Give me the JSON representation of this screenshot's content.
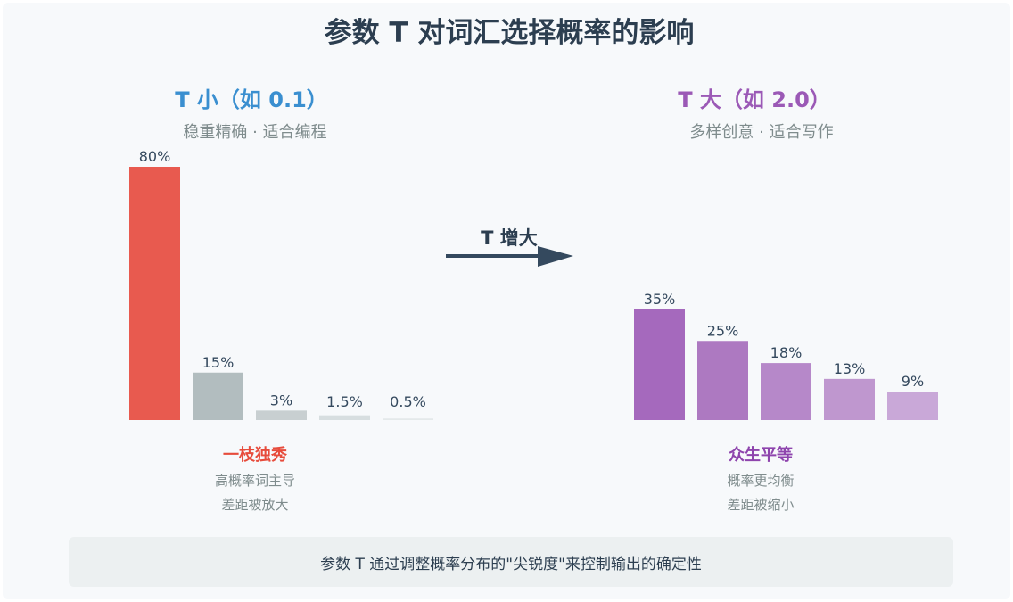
{
  "title": "参数 T 对词汇选择概率的影响",
  "arrow_label": "T 增大",
  "colors": {
    "title": "#2c3e50",
    "subtitle": "#7f8c8d",
    "left_heading": "#3a8fd0",
    "right_heading": "#9b59b6",
    "left_caption": "#e74c3c",
    "right_caption": "#8e44ad",
    "value_label": "#34495e",
    "arrow": "#34495e"
  },
  "chart_data": [
    {
      "type": "bar",
      "title": "T 小（如 0.1）",
      "subtitle": "稳重精确 · 适合编程",
      "values": [
        80,
        15,
        3,
        1.5,
        0.5
      ],
      "labels": [
        "80%",
        "15%",
        "3%",
        "1.5%",
        "0.5%"
      ],
      "bar_colors": [
        "#e85a4f",
        "#b2bdbf",
        "#c8cfd1",
        "#d7dee0",
        "#e4e9ea"
      ],
      "ylim": [
        0,
        80
      ],
      "grid": false,
      "caption_title": "一枝独秀",
      "caption_lines": [
        "高概率词主导",
        "差距被放大"
      ]
    },
    {
      "type": "bar",
      "title": "T 大（如 2.0）",
      "subtitle": "多样创意 · 适合写作",
      "values": [
        35,
        25,
        18,
        13,
        9
      ],
      "labels": [
        "35%",
        "25%",
        "18%",
        "13%",
        "9%"
      ],
      "bar_colors": [
        "#a569bd",
        "#ad79c1",
        "#b688c9",
        "#bf97cf",
        "#c9a8d8"
      ],
      "ylim": [
        0,
        80
      ],
      "grid": false,
      "caption_title": "众生平等",
      "caption_lines": [
        "概率更均衡",
        "差距被缩小"
      ]
    }
  ],
  "footer_text": "参数 T 通过调整概率分布的\"尖锐度\"来控制输出的确定性"
}
